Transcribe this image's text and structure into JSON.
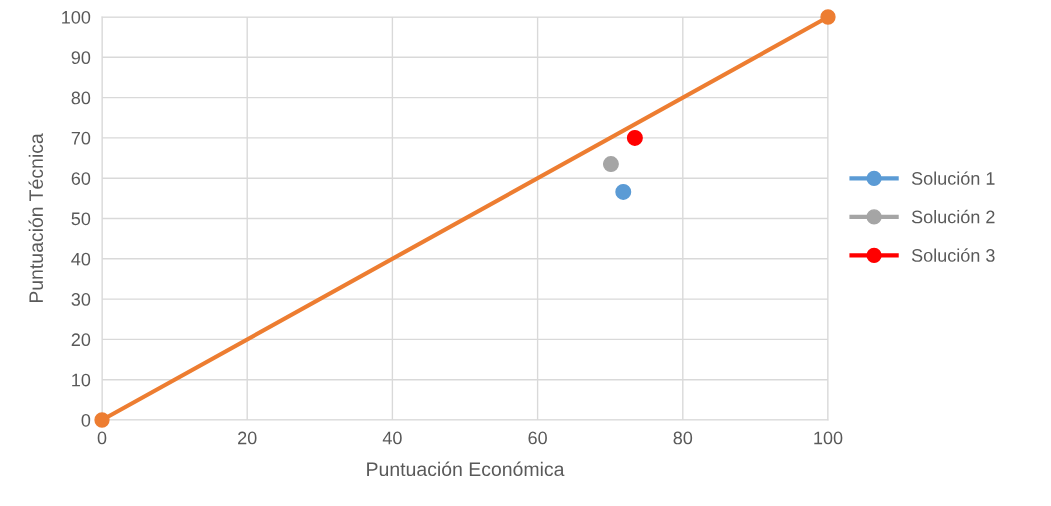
{
  "chart_data": {
    "type": "scatter",
    "xlabel": "Puntuación Económica",
    "ylabel": "Puntuación Técnica",
    "xlim": [
      0,
      100
    ],
    "xticks": [
      0,
      20,
      40,
      60,
      80,
      100
    ],
    "ylim": [
      0,
      100
    ],
    "yticks": [
      0,
      10,
      20,
      30,
      40,
      50,
      60,
      70,
      80,
      90,
      100
    ],
    "grid": true,
    "legend": "right",
    "marker": "circle",
    "series": [
      {
        "type": "line",
        "color": "#ed7d31",
        "x": [
          0,
          100
        ],
        "values": [
          0,
          100
        ]
      },
      {
        "name": "Solución 1",
        "color": "#5b9bd5",
        "x": [
          71.8
        ],
        "values": [
          56.6
        ]
      },
      {
        "name": "Solución 2",
        "color": "#a5a5a5",
        "x": [
          70.1
        ],
        "values": [
          63.5
        ]
      },
      {
        "name": "Solución 3",
        "color": "#ff0000",
        "x": [
          73.4
        ],
        "values": [
          70
        ]
      }
    ]
  }
}
